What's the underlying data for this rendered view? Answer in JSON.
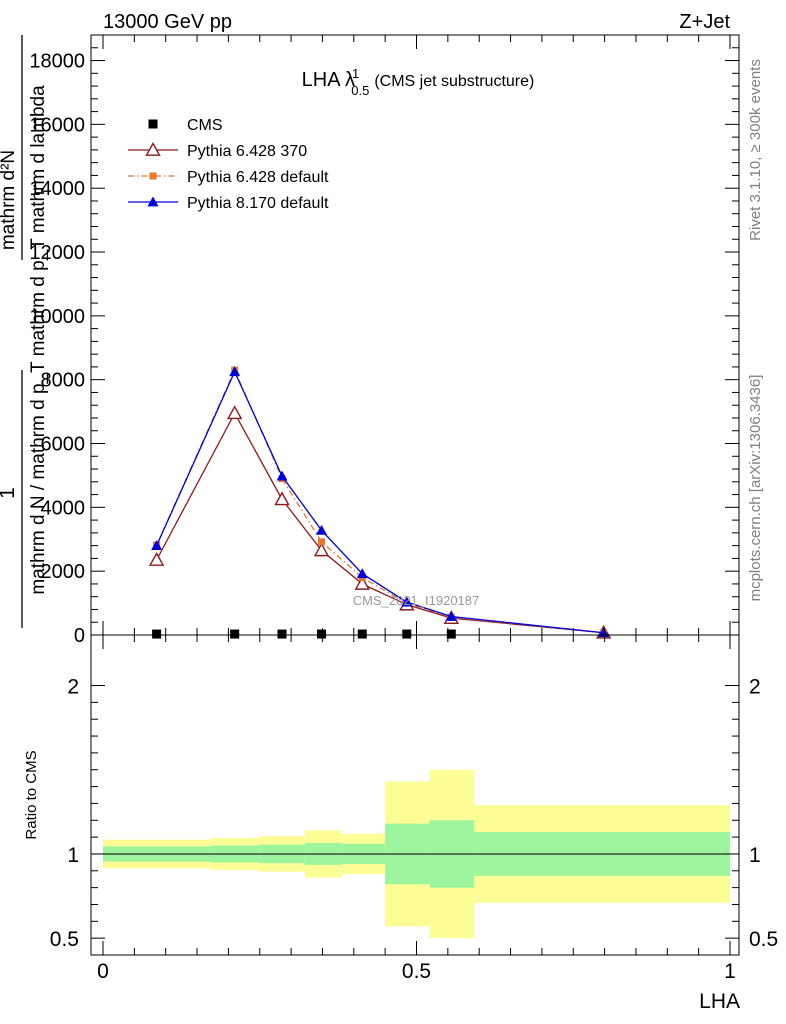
{
  "header": {
    "energy_label": "13000 GeV pp",
    "process_label": "Z+Jet",
    "side_label_rivet": "Rivet 3.1.10, ≥ 300k events",
    "side_label_mcplots": "mcplots.cern.ch [arXiv:1306.3436]"
  },
  "chart_data": [
    {
      "type": "line",
      "panel": "main",
      "title": {
        "main": "LHA λ",
        "sup": "1",
        "sub": "0.5",
        "suffix": "(CMS jet substructure)"
      },
      "watermark": "CMS_2021_I1920187",
      "ylabel_lines": [
        "1",
        "mathrm d N / mathrm d p_T mathrm d p_T mathrm d lambda",
        "mathrm d²N"
      ],
      "xlim": [
        0,
        1
      ],
      "ylim": [
        0,
        18800
      ],
      "yticks": [
        0,
        2000,
        4000,
        6000,
        8000,
        10000,
        12000,
        14000,
        16000,
        18000
      ],
      "ytick_labels": [
        "0",
        "2000",
        "4000",
        "6000",
        "8000",
        "10000",
        "12000",
        "14000",
        "16000",
        "18000"
      ],
      "legend_position": "top-left",
      "series": [
        {
          "name": "CMS",
          "color": "#000000",
          "marker": "square",
          "x": [
            0.0855,
            0.21,
            0.2855,
            0.3485,
            0.4135,
            0.4845,
            0.5555
          ],
          "y": [
            30,
            30,
            30,
            30,
            30,
            30,
            30
          ]
        },
        {
          "name": "Pythia 6.428 370",
          "color": "#8b1a1a",
          "marker": "open-triangle",
          "line": "solid",
          "x": [
            0.0855,
            0.21,
            0.2855,
            0.3485,
            0.4135,
            0.4845,
            0.5555,
            0.7985
          ],
          "y": [
            2350,
            6950,
            4250,
            2650,
            1600,
            950,
            530,
            70
          ]
        },
        {
          "name": "Pythia 6.428 default",
          "color": "#e8762b",
          "marker": "small-square",
          "line": "dash-dot",
          "x": [
            0.0855,
            0.21,
            0.2855,
            0.3485,
            0.4135,
            0.4845,
            0.5555,
            0.7985
          ],
          "y": [
            2820,
            8300,
            4900,
            2920,
            1800,
            1000,
            560,
            70
          ]
        },
        {
          "name": "Pythia 8.170 default",
          "color": "#0000dd",
          "marker": "filled-triangle",
          "line": "solid",
          "x": [
            0.0855,
            0.21,
            0.2855,
            0.3485,
            0.4135,
            0.4845,
            0.5555,
            0.7985
          ],
          "y": [
            2800,
            8250,
            4980,
            3280,
            1920,
            1030,
            580,
            70
          ]
        }
      ]
    },
    {
      "type": "area",
      "panel": "ratio",
      "ylabel": "Ratio to CMS",
      "xlabel": "LHA",
      "xlim": [
        0,
        1
      ],
      "ylim": [
        0.4,
        2.3
      ],
      "yticks": [
        0.5,
        1,
        2
      ],
      "ytick_labels": [
        "0.5",
        "1",
        "2"
      ],
      "xticks": [
        0,
        0.5,
        1
      ],
      "xtick_labels": [
        "0",
        "0.5",
        "1"
      ],
      "reference_line": 1,
      "band_colors": {
        "stat": "#9cf59c",
        "total": "#fdfd96"
      },
      "bins": [
        {
          "x0": 0.0,
          "x1": 0.171,
          "stat": [
            0.955,
            1.045
          ],
          "total": [
            0.915,
            1.085
          ]
        },
        {
          "x0": 0.171,
          "x1": 0.249,
          "stat": [
            0.95,
            1.05
          ],
          "total": [
            0.905,
            1.095
          ]
        },
        {
          "x0": 0.249,
          "x1": 0.322,
          "stat": [
            0.945,
            1.055
          ],
          "total": [
            0.895,
            1.105
          ]
        },
        {
          "x0": 0.322,
          "x1": 0.381,
          "stat": [
            0.935,
            1.065
          ],
          "total": [
            0.86,
            1.14
          ]
        },
        {
          "x0": 0.381,
          "x1": 0.45,
          "stat": [
            0.94,
            1.06
          ],
          "total": [
            0.88,
            1.12
          ]
        },
        {
          "x0": 0.45,
          "x1": 0.521,
          "stat": [
            0.82,
            1.18
          ],
          "total": [
            0.57,
            1.43
          ]
        },
        {
          "x0": 0.521,
          "x1": 0.592,
          "stat": [
            0.8,
            1.2
          ],
          "total": [
            0.5,
            1.5
          ]
        },
        {
          "x0": 0.592,
          "x1": 1.0,
          "stat": [
            0.87,
            1.13
          ],
          "total": [
            0.71,
            1.29
          ]
        }
      ]
    }
  ]
}
